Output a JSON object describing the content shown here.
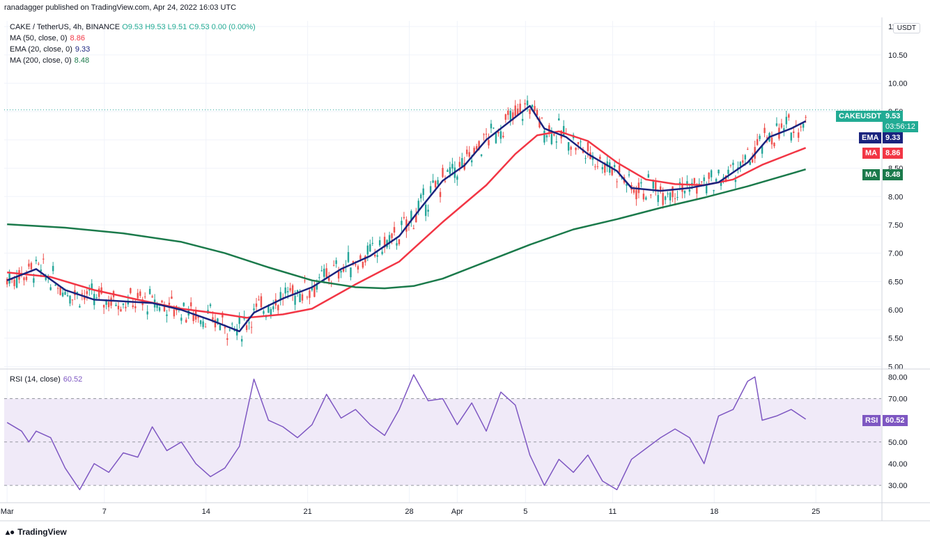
{
  "header": {
    "published": "ranadagger published on TradingView.com, Apr 24, 2022 16:03 UTC",
    "symbol_line": "CAKE / TetherUS, 4h, BINANCE",
    "ohlc": {
      "o": "O9.53",
      "h": "H9.53",
      "l": "L9.51",
      "c": "C9.53",
      "chg": "0.00 (0.00%)"
    },
    "indicators": [
      {
        "label": "MA (50, close, 0)",
        "value": "8.86",
        "color": "#f23645"
      },
      {
        "label": "EMA (20, close, 0)",
        "value": "9.33",
        "color": "#1a237e"
      },
      {
        "label": "MA (200, close, 0)",
        "value": "8.48",
        "color": "#1b7a4b"
      }
    ],
    "rsi_label": "RSI (14, close)",
    "rsi_value": "60.52"
  },
  "currency": "USDT",
  "footer": {
    "brand": "TradingView"
  },
  "tags": {
    "last": {
      "name": "CAKEUSDT",
      "value": "9.53",
      "timer": "03:56:12",
      "color": "#22ab94"
    },
    "ema": {
      "name": "EMA",
      "value": "9.33",
      "color": "#1a237e"
    },
    "ma50": {
      "name": "MA",
      "value": "8.86",
      "color": "#f23645"
    },
    "ma200": {
      "name": "MA",
      "value": "8.48",
      "color": "#1b7a4b"
    },
    "rsi": {
      "name": "RSI",
      "value": "60.52",
      "color": "#7e57c2"
    }
  },
  "colors": {
    "up": "#26a69a",
    "down": "#ef5350",
    "ma50": "#f23645",
    "ema20": "#1a237e",
    "ma200": "#1b7a4b",
    "rsi": "#7e57c2",
    "rsi_band": "#f0eaf8"
  },
  "chart_data": [
    {
      "type": "candlestick",
      "title": "CAKE / TetherUS, 4h, BINANCE",
      "x_tick_labels": [
        "Mar",
        "7",
        "14",
        "21",
        "28",
        "Apr",
        "5",
        "11",
        "18",
        "25"
      ],
      "x_ticks_day": [
        0,
        6.7,
        13.7,
        20.7,
        27.7,
        31,
        35.7,
        41.7,
        48.7,
        55.7
      ],
      "y_ticks": [
        5.0,
        5.5,
        6.0,
        6.5,
        7.0,
        7.5,
        8.0,
        8.5,
        9.0,
        9.5,
        10.0,
        10.5,
        11.0
      ],
      "y_tick_labels": [
        "5.00",
        "5.50",
        "6.00",
        "6.50",
        "7.00",
        "7.50",
        "8.00",
        "8.50",
        "9.00",
        "9.50",
        "10.00",
        "10.50",
        "11.00"
      ],
      "ylim": [
        4.98,
        11.1
      ],
      "last_price": 9.53,
      "series": [
        {
          "name": "MA (50, close, 0)",
          "points": [
            [
              0,
              6.66
            ],
            [
              3,
              6.58
            ],
            [
              6,
              6.35
            ],
            [
              9,
              6.18
            ],
            [
              12,
              6.02
            ],
            [
              15,
              5.92
            ],
            [
              16.5,
              5.86
            ],
            [
              19,
              5.92
            ],
            [
              21,
              6.02
            ],
            [
              24,
              6.45
            ],
            [
              27,
              6.85
            ],
            [
              30,
              7.55
            ],
            [
              33,
              8.2
            ],
            [
              35,
              8.75
            ],
            [
              36.5,
              9.08
            ],
            [
              38,
              9.15
            ],
            [
              40,
              8.98
            ],
            [
              42,
              8.6
            ],
            [
              44,
              8.3
            ],
            [
              46,
              8.22
            ],
            [
              48,
              8.2
            ],
            [
              50,
              8.3
            ],
            [
              52,
              8.56
            ],
            [
              55,
              8.86
            ]
          ]
        },
        {
          "name": "EMA (20, close, 0)",
          "points": [
            [
              0,
              6.52
            ],
            [
              2,
              6.72
            ],
            [
              4,
              6.35
            ],
            [
              6,
              6.18
            ],
            [
              8,
              6.15
            ],
            [
              10,
              6.12
            ],
            [
              12,
              6.0
            ],
            [
              14,
              5.82
            ],
            [
              16,
              5.62
            ],
            [
              17,
              5.95
            ],
            [
              19,
              6.2
            ],
            [
              21,
              6.4
            ],
            [
              23,
              6.72
            ],
            [
              25,
              6.95
            ],
            [
              27,
              7.3
            ],
            [
              28.5,
              7.8
            ],
            [
              30,
              8.28
            ],
            [
              31.5,
              8.55
            ],
            [
              33,
              9.0
            ],
            [
              35,
              9.4
            ],
            [
              36,
              9.6
            ],
            [
              37,
              9.2
            ],
            [
              38.5,
              9.05
            ],
            [
              40,
              8.75
            ],
            [
              42,
              8.45
            ],
            [
              43,
              8.15
            ],
            [
              45,
              8.1
            ],
            [
              47,
              8.15
            ],
            [
              49,
              8.25
            ],
            [
              51,
              8.6
            ],
            [
              52.5,
              9.05
            ],
            [
              54,
              9.2
            ],
            [
              55,
              9.33
            ]
          ]
        },
        {
          "name": "MA (200, close, 0)",
          "points": [
            [
              0,
              7.51
            ],
            [
              4,
              7.45
            ],
            [
              8,
              7.35
            ],
            [
              12,
              7.2
            ],
            [
              15,
              7.0
            ],
            [
              18,
              6.75
            ],
            [
              21,
              6.52
            ],
            [
              24,
              6.4
            ],
            [
              26,
              6.38
            ],
            [
              28,
              6.42
            ],
            [
              30,
              6.55
            ],
            [
              33,
              6.85
            ],
            [
              36,
              7.15
            ],
            [
              39,
              7.42
            ],
            [
              42,
              7.6
            ],
            [
              45,
              7.8
            ],
            [
              48,
              7.98
            ],
            [
              51,
              8.18
            ],
            [
              55,
              8.48
            ]
          ]
        }
      ]
    },
    {
      "type": "line",
      "title": "RSI (14, close)",
      "y_ticks": [
        30,
        40,
        50,
        60,
        70,
        80
      ],
      "y_tick_labels": [
        "30.00",
        "40.00",
        "50.00",
        "60.00",
        "70.00",
        "80.00"
      ],
      "ylim": [
        22,
        83
      ],
      "band": [
        30,
        70
      ],
      "series": [
        {
          "name": "RSI (14, close)",
          "points": [
            [
              0,
              59
            ],
            [
              1,
              55
            ],
            [
              1.5,
              50
            ],
            [
              2,
              55
            ],
            [
              3,
              52
            ],
            [
              4,
              38
            ],
            [
              5,
              28
            ],
            [
              6,
              40
            ],
            [
              7,
              36
            ],
            [
              8,
              45
            ],
            [
              9,
              43
            ],
            [
              10,
              57
            ],
            [
              11,
              46
            ],
            [
              12,
              50
            ],
            [
              13,
              40
            ],
            [
              14,
              34
            ],
            [
              15,
              38
            ],
            [
              16,
              48
            ],
            [
              17,
              79
            ],
            [
              18,
              60
            ],
            [
              19,
              57
            ],
            [
              20,
              52
            ],
            [
              21,
              58
            ],
            [
              22,
              72
            ],
            [
              23,
              61
            ],
            [
              24,
              65
            ],
            [
              25,
              58
            ],
            [
              26,
              53
            ],
            [
              27,
              65
            ],
            [
              28,
              81
            ],
            [
              29,
              69
            ],
            [
              30,
              70
            ],
            [
              31,
              58
            ],
            [
              32,
              68
            ],
            [
              33,
              55
            ],
            [
              34,
              73
            ],
            [
              35,
              67
            ],
            [
              36,
              44
            ],
            [
              37,
              30
            ],
            [
              38,
              42
            ],
            [
              39,
              36
            ],
            [
              40,
              44
            ],
            [
              41,
              32
            ],
            [
              42,
              28
            ],
            [
              43,
              42
            ],
            [
              44,
              47
            ],
            [
              45,
              52
            ],
            [
              46,
              56
            ],
            [
              47,
              52
            ],
            [
              48,
              40
            ],
            [
              49,
              62
            ],
            [
              50,
              65
            ],
            [
              51,
              78
            ],
            [
              51.5,
              80
            ],
            [
              52,
              60
            ],
            [
              53,
              62
            ],
            [
              54,
              65
            ],
            [
              55,
              60.52
            ]
          ]
        }
      ]
    }
  ]
}
